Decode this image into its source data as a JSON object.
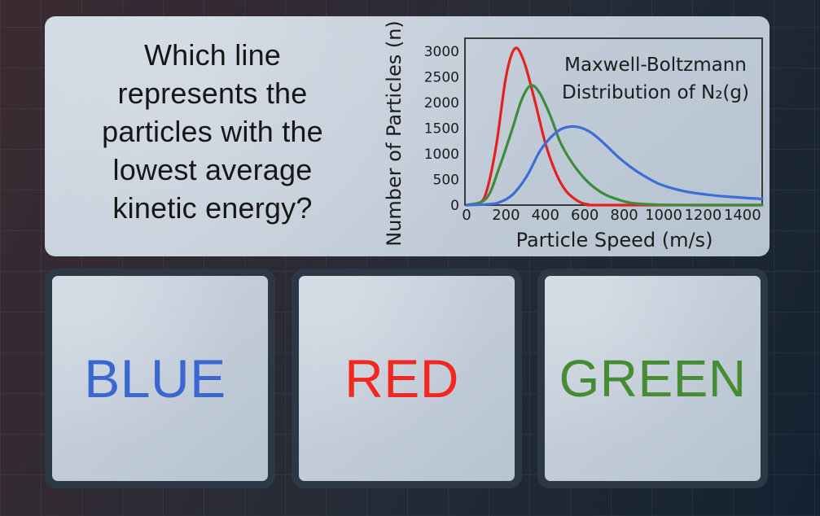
{
  "question": {
    "lines": [
      "Which line",
      "represents the",
      "particles with the",
      "lowest average",
      "kinetic energy?"
    ],
    "full_text": "Which line represents the particles with the lowest average kinetic energy?"
  },
  "answers": [
    {
      "label": "BLUE",
      "color": "#3a68d0"
    },
    {
      "label": "RED",
      "color": "#f2271f"
    },
    {
      "label": "GREEN",
      "color": "#478c34"
    }
  ],
  "colors": {
    "card_border": "#2c3845",
    "card_surface": "#c3cdd9",
    "background_top_left": "#3b2b31",
    "background_bottom_right": "#152231",
    "chart_frame": "#3a3a3a",
    "chart_text": "#1c1c1c"
  },
  "chart_data": {
    "type": "line",
    "title_lines": [
      "Maxwell-Boltzmann",
      "Distribution of N₂(g)"
    ],
    "xlabel": "Particle Speed (m/s)",
    "ylabel": "Number of Particles (n)",
    "x_ticks": [
      0,
      200,
      400,
      600,
      800,
      1000,
      1200,
      1400
    ],
    "y_ticks": [
      0,
      500,
      1000,
      1500,
      2000,
      2500,
      3000
    ],
    "xlim": [
      0,
      1500
    ],
    "ylim": [
      0,
      3250
    ],
    "grid": false,
    "series": [
      {
        "name": "red",
        "color": "#e2231d",
        "peak": {
          "x": 245,
          "y": 3050
        },
        "points": [
          [
            0,
            0
          ],
          [
            60,
            30
          ],
          [
            100,
            250
          ],
          [
            150,
            1150
          ],
          [
            200,
            2500
          ],
          [
            245,
            3050
          ],
          [
            290,
            2810
          ],
          [
            345,
            2050
          ],
          [
            400,
            1200
          ],
          [
            455,
            610
          ],
          [
            505,
            275
          ],
          [
            565,
            80
          ],
          [
            615,
            15
          ],
          [
            700,
            0
          ],
          [
            1500,
            0
          ]
        ]
      },
      {
        "name": "green",
        "color": "#3e8b3e",
        "peak": {
          "x": 325,
          "y": 2330
        },
        "points": [
          [
            0,
            0
          ],
          [
            100,
            130
          ],
          [
            165,
            720
          ],
          [
            235,
            1520
          ],
          [
            280,
            2060
          ],
          [
            325,
            2330
          ],
          [
            370,
            2190
          ],
          [
            425,
            1740
          ],
          [
            475,
            1230
          ],
          [
            530,
            855
          ],
          [
            600,
            510
          ],
          [
            665,
            295
          ],
          [
            730,
            160
          ],
          [
            840,
            40
          ],
          [
            1000,
            5
          ],
          [
            1180,
            0
          ],
          [
            1500,
            0
          ]
        ]
      },
      {
        "name": "blue",
        "color": "#3c6ed5",
        "peak": {
          "x": 530,
          "y": 1530
        },
        "points": [
          [
            0,
            0
          ],
          [
            100,
            15
          ],
          [
            165,
            50
          ],
          [
            235,
            210
          ],
          [
            305,
            560
          ],
          [
            370,
            1040
          ],
          [
            425,
            1310
          ],
          [
            475,
            1470
          ],
          [
            530,
            1530
          ],
          [
            585,
            1500
          ],
          [
            640,
            1390
          ],
          [
            705,
            1175
          ],
          [
            770,
            935
          ],
          [
            840,
            720
          ],
          [
            905,
            560
          ],
          [
            985,
            400
          ],
          [
            1105,
            270
          ],
          [
            1240,
            195
          ],
          [
            1375,
            150
          ],
          [
            1500,
            120
          ]
        ]
      }
    ]
  }
}
